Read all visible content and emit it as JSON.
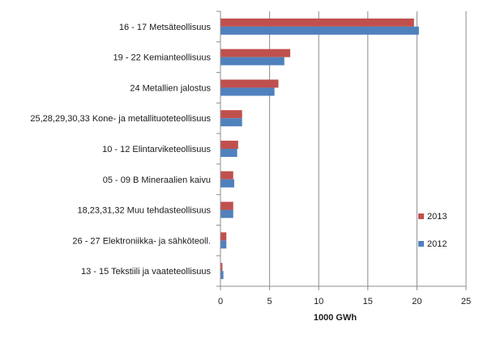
{
  "chart_data": {
    "type": "bar",
    "orientation": "horizontal",
    "categories": [
      "16 - 17 Metsäteollisuus",
      "19 - 22 Kemianteollisuus",
      "24 Metallien jalostus",
      "25,28,29,30,33 Kone- ja metallituoteteollisuus",
      "10 - 12 Elintarviketeollisuus",
      "05 - 09 B Mineraalien kaivu",
      "18,23,31,32 Muu tehdasteollisuus",
      "26 - 27 Elektroniikka- ja sähköteoll.",
      "13 - 15 Tekstiili ja vaateteollisuus"
    ],
    "series": [
      {
        "name": "2013",
        "color": "#c0504d",
        "values": [
          19.7,
          7.1,
          5.9,
          2.2,
          1.8,
          1.3,
          1.3,
          0.6,
          0.2
        ]
      },
      {
        "name": "2012",
        "color": "#4f81bd",
        "values": [
          20.2,
          6.5,
          5.5,
          2.2,
          1.7,
          1.4,
          1.3,
          0.6,
          0.3
        ]
      }
    ],
    "xlabel": "1000 GWh",
    "ylabel": "",
    "title": "",
    "xlim": [
      0,
      25
    ],
    "xticks": [
      0,
      5,
      10,
      15,
      20,
      25
    ],
    "grid": "vertical",
    "legend_position": "right"
  }
}
